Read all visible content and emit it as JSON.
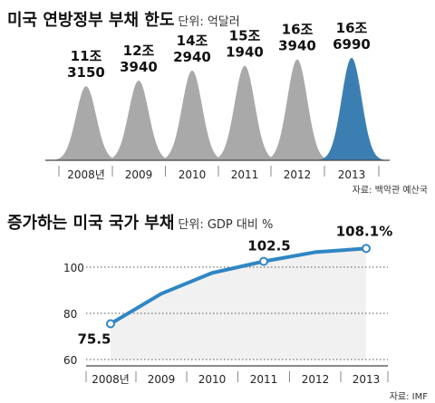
{
  "chart_data": [
    {
      "type": "area",
      "title": "미국 연방정부 부채 한도",
      "unit": "단위: 억달러",
      "categories": [
        "2008년",
        "2009",
        "2010",
        "2011",
        "2012",
        "2013"
      ],
      "values": [
        113150,
        123940,
        142940,
        151940,
        163940,
        166990
      ],
      "value_labels": [
        [
          "11조",
          "3150"
        ],
        [
          "12조",
          "3940"
        ],
        [
          "14조",
          "2940"
        ],
        [
          "15조",
          "1940"
        ],
        [
          "16조",
          "3940"
        ],
        [
          "16조",
          "6990"
        ]
      ],
      "source": "자료: 백악관 예산국",
      "colors": {
        "normal": "#a9a9a9",
        "highlight": "#3b7fb2"
      },
      "highlight_index": 5
    },
    {
      "type": "line",
      "title": "증가하는 미국 국가 부채",
      "unit": "단위: GDP 대비 %",
      "categories": [
        "2008년",
        "2009",
        "2010",
        "2011",
        "2012",
        "2013"
      ],
      "values": [
        75.5,
        88.5,
        97.5,
        102.5,
        106.5,
        108.1
      ],
      "value_labels": [
        "75.5",
        "",
        "",
        "102.5",
        "",
        "108.1%"
      ],
      "ylim": [
        60,
        105
      ],
      "yticks": [
        60,
        80,
        100
      ],
      "ytick_labels": [
        "60",
        "80",
        "100"
      ],
      "grid": true,
      "source": "자료: IMF",
      "colors": {
        "line": "#2f86c4",
        "fill": "#f1f1f1"
      }
    }
  ]
}
